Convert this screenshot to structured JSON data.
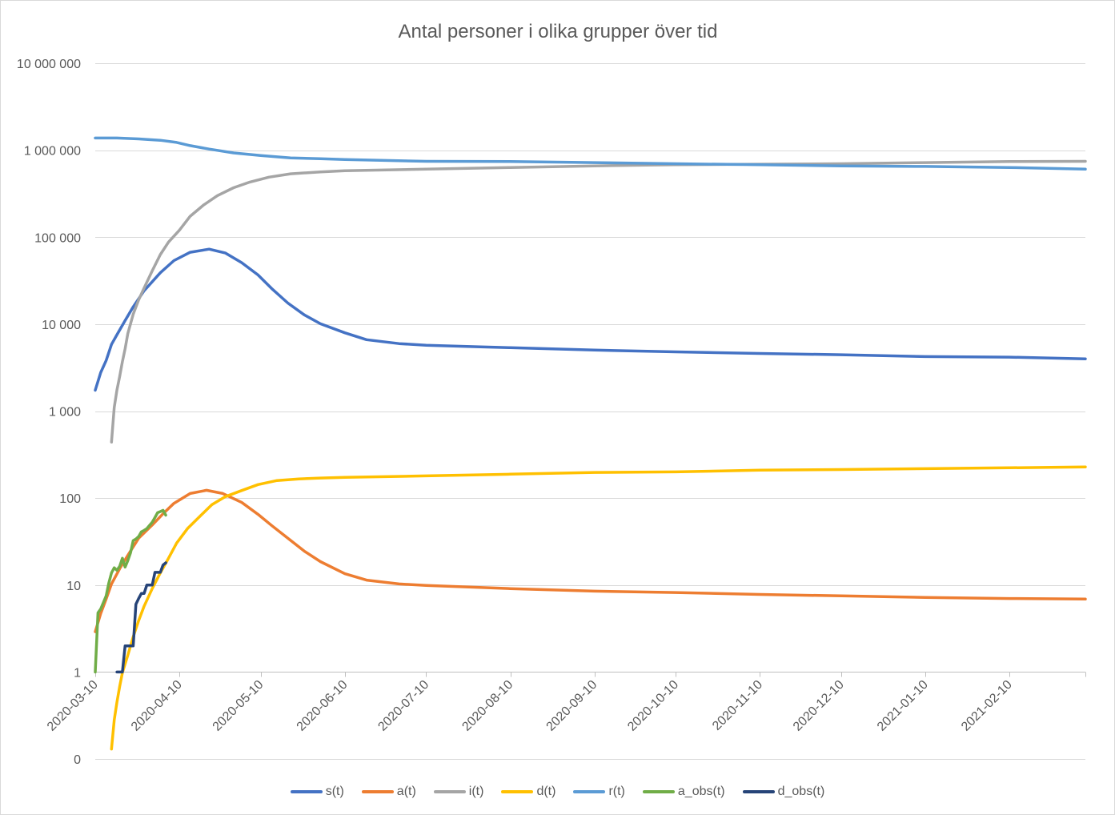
{
  "chart_data": {
    "type": "line",
    "title": "Antal personer i olika grupper över tid",
    "xlabel": "",
    "ylabel": "",
    "x_type": "date",
    "xlim": [
      "2020-03-10",
      "2021-03-10"
    ],
    "x_ticks": [
      "2020-03-10",
      "2020-04-10",
      "2020-05-10",
      "2020-06-10",
      "2020-07-10",
      "2020-08-10",
      "2020-09-10",
      "2020-10-10",
      "2020-11-10",
      "2020-12-10",
      "2021-01-10",
      "2021-02-10"
    ],
    "y_scale": "log",
    "ylim": [
      0.1,
      10000000
    ],
    "y_ticks": [
      10000000,
      1000000,
      100000,
      10000,
      1000,
      100,
      10,
      1,
      0.1
    ],
    "y_tick_labels": [
      "10 000 000",
      "1 000 000",
      "100 000",
      "10 000",
      "1 000",
      "100",
      "10",
      "1",
      "0"
    ],
    "x_axis_crosses_at": 1,
    "grid": "horizontal",
    "legend": "bottom",
    "series": [
      {
        "name": "s(t)",
        "color": "#4472C4",
        "points": [
          [
            "2020-03-10",
            1740
          ],
          [
            "2020-03-12",
            2770
          ],
          [
            "2020-03-14",
            3820
          ],
          [
            "2020-03-16",
            5850
          ],
          [
            "2020-03-18",
            7550
          ],
          [
            "2020-03-21",
            11000
          ],
          [
            "2020-03-24",
            15800
          ],
          [
            "2020-03-28",
            24200
          ],
          [
            "2020-04-03",
            39000
          ],
          [
            "2020-04-08",
            53800
          ],
          [
            "2020-04-14",
            67000
          ],
          [
            "2020-04-21",
            72800
          ],
          [
            "2020-04-27",
            65700
          ],
          [
            "2020-05-03",
            50900
          ],
          [
            "2020-05-09",
            36800
          ],
          [
            "2020-05-14",
            25700
          ],
          [
            "2020-05-20",
            17500
          ],
          [
            "2020-05-26",
            12800
          ],
          [
            "2020-06-01",
            10100
          ],
          [
            "2020-06-10",
            7950
          ],
          [
            "2020-06-18",
            6630
          ],
          [
            "2020-06-30",
            5970
          ],
          [
            "2020-07-10",
            5720
          ],
          [
            "2020-07-30",
            5480
          ],
          [
            "2020-08-10",
            5360
          ],
          [
            "2020-09-10",
            5030
          ],
          [
            "2020-10-10",
            4800
          ],
          [
            "2020-11-10",
            4600
          ],
          [
            "2020-12-10",
            4450
          ],
          [
            "2021-01-10",
            4240
          ],
          [
            "2021-02-10",
            4170
          ],
          [
            "2021-03-10",
            3990
          ]
        ]
      },
      {
        "name": "a(t)",
        "color": "#ED7D31",
        "points": [
          [
            "2020-03-10",
            2.9
          ],
          [
            "2020-03-12",
            4.7
          ],
          [
            "2020-03-14",
            6.9
          ],
          [
            "2020-03-16",
            10.3
          ],
          [
            "2020-03-19",
            15.4
          ],
          [
            "2020-03-22",
            22
          ],
          [
            "2020-03-26",
            34.5
          ],
          [
            "2020-03-31",
            49
          ],
          [
            "2020-04-04",
            66
          ],
          [
            "2020-04-08",
            87
          ],
          [
            "2020-04-14",
            113
          ],
          [
            "2020-04-20",
            123
          ],
          [
            "2020-04-26",
            113
          ],
          [
            "2020-05-03",
            89
          ],
          [
            "2020-05-09",
            65
          ],
          [
            "2020-05-14",
            48.5
          ],
          [
            "2020-05-20",
            34.5
          ],
          [
            "2020-05-26",
            24.6
          ],
          [
            "2020-06-01",
            18.6
          ],
          [
            "2020-06-10",
            13.5
          ],
          [
            "2020-06-18",
            11.4
          ],
          [
            "2020-06-30",
            10.3
          ],
          [
            "2020-07-10",
            9.9
          ],
          [
            "2020-08-10",
            9.1
          ],
          [
            "2020-09-10",
            8.5
          ],
          [
            "2020-10-10",
            8.2
          ],
          [
            "2020-11-10",
            7.8
          ],
          [
            "2020-12-10",
            7.5
          ],
          [
            "2021-01-10",
            7.2
          ],
          [
            "2021-02-10",
            7.0
          ],
          [
            "2021-03-10",
            6.9
          ]
        ]
      },
      {
        "name": "i(t)",
        "color": "#A5A5A5",
        "points": [
          [
            "2020-03-16",
            440
          ],
          [
            "2020-03-17",
            1100
          ],
          [
            "2020-03-18",
            1750
          ],
          [
            "2020-03-19",
            2500
          ],
          [
            "2020-03-20",
            3700
          ],
          [
            "2020-03-21",
            5200
          ],
          [
            "2020-03-22",
            7800
          ],
          [
            "2020-03-24",
            13000
          ],
          [
            "2020-03-26",
            19000
          ],
          [
            "2020-03-28",
            26000
          ],
          [
            "2020-03-31",
            41000
          ],
          [
            "2020-04-03",
            63000
          ],
          [
            "2020-04-06",
            87700
          ],
          [
            "2020-04-10",
            120000
          ],
          [
            "2020-04-14",
            174000
          ],
          [
            "2020-04-19",
            235000
          ],
          [
            "2020-04-24",
            300000
          ],
          [
            "2020-04-30",
            370000
          ],
          [
            "2020-05-06",
            430000
          ],
          [
            "2020-05-13",
            490000
          ],
          [
            "2020-05-21",
            535000
          ],
          [
            "2020-06-01",
            563000
          ],
          [
            "2020-06-10",
            580000
          ],
          [
            "2020-07-10",
            605000
          ],
          [
            "2020-08-10",
            633000
          ],
          [
            "2020-09-10",
            660000
          ],
          [
            "2020-10-10",
            680000
          ],
          [
            "2020-11-10",
            690000
          ],
          [
            "2020-12-10",
            700000
          ],
          [
            "2021-01-10",
            720000
          ],
          [
            "2021-02-10",
            740000
          ],
          [
            "2021-03-10",
            745000
          ]
        ]
      },
      {
        "name": "d(t)",
        "color": "#FFC000",
        "points": [
          [
            "2020-03-16",
            0.13
          ],
          [
            "2020-03-17",
            0.28
          ],
          [
            "2020-03-18",
            0.45
          ],
          [
            "2020-03-19",
            0.68
          ],
          [
            "2020-03-20",
            0.98
          ],
          [
            "2020-03-22",
            1.56
          ],
          [
            "2020-03-24",
            2.54
          ],
          [
            "2020-03-26",
            3.9
          ],
          [
            "2020-03-28",
            5.7
          ],
          [
            "2020-03-31",
            9.1
          ],
          [
            "2020-04-03",
            13.8
          ],
          [
            "2020-04-06",
            20.3
          ],
          [
            "2020-04-09",
            30.4
          ],
          [
            "2020-04-13",
            44.5
          ],
          [
            "2020-04-18",
            63.6
          ],
          [
            "2020-04-22",
            84
          ],
          [
            "2020-04-27",
            104
          ],
          [
            "2020-05-03",
            122
          ],
          [
            "2020-05-09",
            143
          ],
          [
            "2020-05-16",
            159
          ],
          [
            "2020-05-24",
            166
          ],
          [
            "2020-06-01",
            170
          ],
          [
            "2020-06-10",
            173
          ],
          [
            "2020-07-10",
            180
          ],
          [
            "2020-08-10",
            188
          ],
          [
            "2020-09-10",
            197
          ],
          [
            "2020-10-10",
            200
          ],
          [
            "2020-11-10",
            209
          ],
          [
            "2020-12-10",
            213
          ],
          [
            "2021-01-10",
            218
          ],
          [
            "2021-02-10",
            223
          ],
          [
            "2021-03-10",
            228
          ]
        ]
      },
      {
        "name": "r(t)",
        "color": "#5B9BD5",
        "points": [
          [
            "2020-03-10",
            1380000
          ],
          [
            "2020-03-18",
            1380000
          ],
          [
            "2020-03-26",
            1350000
          ],
          [
            "2020-04-03",
            1300000
          ],
          [
            "2020-04-09",
            1230000
          ],
          [
            "2020-04-14",
            1130000
          ],
          [
            "2020-04-21",
            1030000
          ],
          [
            "2020-04-30",
            930000
          ],
          [
            "2020-05-10",
            870000
          ],
          [
            "2020-05-21",
            815000
          ],
          [
            "2020-06-01",
            800000
          ],
          [
            "2020-06-10",
            780000
          ],
          [
            "2020-07-10",
            745000
          ],
          [
            "2020-08-10",
            740000
          ],
          [
            "2020-09-10",
            720000
          ],
          [
            "2020-10-10",
            700000
          ],
          [
            "2020-11-10",
            680000
          ],
          [
            "2020-12-10",
            660000
          ],
          [
            "2021-01-10",
            650000
          ],
          [
            "2021-02-10",
            633000
          ],
          [
            "2021-03-10",
            605000
          ]
        ]
      },
      {
        "name": "a_obs(t)",
        "color": "#70AD47",
        "points": [
          [
            "2020-03-10",
            1
          ],
          [
            "2020-03-11",
            4.8
          ],
          [
            "2020-03-12",
            5.3
          ],
          [
            "2020-03-13",
            6.3
          ],
          [
            "2020-03-14",
            7.5
          ],
          [
            "2020-03-15",
            10.5
          ],
          [
            "2020-03-16",
            13.8
          ],
          [
            "2020-03-17",
            15.8
          ],
          [
            "2020-03-18",
            14.8
          ],
          [
            "2020-03-19",
            16.4
          ],
          [
            "2020-03-20",
            20.3
          ],
          [
            "2020-03-21",
            16.1
          ],
          [
            "2020-03-22",
            19.1
          ],
          [
            "2020-03-23",
            23.5
          ],
          [
            "2020-03-24",
            32.4
          ],
          [
            "2020-03-25",
            33.8
          ],
          [
            "2020-03-26",
            36.1
          ],
          [
            "2020-03-27",
            40.9
          ],
          [
            "2020-03-28",
            42.5
          ],
          [
            "2020-03-29",
            44.5
          ],
          [
            "2020-03-30",
            48.5
          ],
          [
            "2020-03-31",
            52.7
          ],
          [
            "2020-04-01",
            59.8
          ],
          [
            "2020-04-02",
            67.9
          ],
          [
            "2020-04-03",
            70
          ],
          [
            "2020-04-04",
            72.4
          ],
          [
            "2020-04-05",
            63.6
          ]
        ]
      },
      {
        "name": "d_obs(t)",
        "color": "#264478",
        "points": [
          [
            "2020-03-18",
            1
          ],
          [
            "2020-03-19",
            1
          ],
          [
            "2020-03-20",
            1
          ],
          [
            "2020-03-21",
            2
          ],
          [
            "2020-03-22",
            2
          ],
          [
            "2020-03-23",
            2
          ],
          [
            "2020-03-24",
            2
          ],
          [
            "2020-03-25",
            6
          ],
          [
            "2020-03-26",
            7
          ],
          [
            "2020-03-27",
            8
          ],
          [
            "2020-03-28",
            8
          ],
          [
            "2020-03-29",
            10
          ],
          [
            "2020-03-30",
            10
          ],
          [
            "2020-03-31",
            10
          ],
          [
            "2020-04-01",
            14
          ],
          [
            "2020-04-02",
            14
          ],
          [
            "2020-04-03",
            14
          ],
          [
            "2020-04-04",
            17
          ],
          [
            "2020-04-05",
            18
          ]
        ]
      }
    ]
  }
}
